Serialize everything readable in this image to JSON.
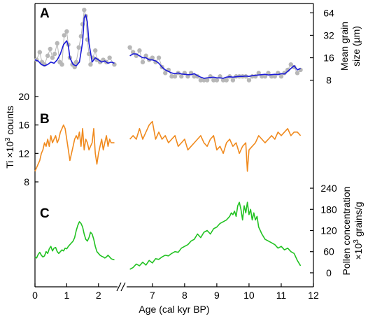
{
  "chart_data": {
    "type": "line",
    "x_axis": {
      "label": "Age (cal kyr BP)",
      "ticks": [
        "0",
        "1",
        "2",
        "7",
        "8",
        "9",
        "10",
        "11",
        "12"
      ],
      "break_symbol": "//",
      "segments": [
        {
          "from": 0,
          "to": 2.6
        },
        {
          "from": 6.2,
          "to": 12
        }
      ]
    },
    "panels": [
      {
        "label": "A",
        "ylabel_line1": "Mean grain",
        "ylabel_line2": "size (µm)",
        "y_side": "right",
        "y_scale": "log2",
        "yticks": [
          "8",
          "16",
          "32",
          "64"
        ],
        "ylim": [
          6,
          80
        ],
        "series": [
          {
            "style": "points",
            "color": "#b7b7b7",
            "x": [
              0.05,
              0.15,
              0.22,
              0.3,
              0.4,
              0.48,
              0.55,
              0.62,
              0.7,
              0.78,
              0.85,
              0.92,
              1.0,
              1.05,
              1.1,
              1.18,
              1.25,
              1.3,
              1.38,
              1.45,
              1.5,
              1.55,
              1.6,
              1.65,
              1.7,
              1.75,
              1.82,
              1.9,
              1.95,
              2.05,
              2.15,
              2.25,
              2.35,
              2.5,
              6.3,
              6.4,
              6.5,
              6.6,
              6.7,
              6.8,
              6.9,
              7.0,
              7.1,
              7.2,
              7.3,
              7.4,
              7.5,
              7.6,
              7.7,
              7.8,
              7.9,
              8.0,
              8.1,
              8.2,
              8.3,
              8.4,
              8.5,
              8.6,
              8.7,
              8.8,
              8.9,
              9.0,
              9.1,
              9.2,
              9.3,
              9.4,
              9.5,
              9.6,
              9.7,
              9.8,
              9.9,
              10.0,
              10.1,
              10.2,
              10.3,
              10.4,
              10.5,
              10.6,
              10.7,
              10.8,
              10.9,
              11.0,
              11.1,
              11.2,
              11.3,
              11.4,
              11.5,
              11.6
            ],
            "values": [
              15,
              19,
              14,
              13,
              17,
              21,
              16,
              18,
              25,
              14,
              13,
              32,
              36,
              24,
              16,
              13,
              12,
              14,
              22,
              31,
              45,
              70,
              58,
              28,
              18,
              13,
              16,
              20,
              15,
              14,
              15,
              14,
              16,
              13,
              22,
              19,
              17,
              20,
              14,
              17,
              15,
              16,
              14,
              16,
              12,
              10,
              11,
              9,
              9,
              10,
              9,
              10,
              9,
              10,
              9,
              9,
              8,
              8,
              8,
              9,
              8,
              8,
              9,
              8,
              8,
              9,
              8,
              9,
              9,
              9,
              9,
              8,
              9,
              9,
              10,
              9,
              9,
              10,
              9,
              9,
              10,
              9,
              10,
              11,
              13,
              12,
              10,
              11
            ]
          },
          {
            "style": "line",
            "color": "#1a1ad6",
            "x": [
              0.0,
              0.1,
              0.2,
              0.3,
              0.4,
              0.5,
              0.6,
              0.7,
              0.8,
              0.9,
              1.0,
              1.05,
              1.1,
              1.2,
              1.3,
              1.4,
              1.5,
              1.55,
              1.6,
              1.65,
              1.7,
              1.8,
              1.9,
              2.0,
              2.1,
              2.2,
              2.3,
              2.4,
              2.5,
              6.3,
              6.4,
              6.5,
              6.6,
              6.7,
              6.8,
              6.9,
              7.0,
              7.1,
              7.2,
              7.3,
              7.4,
              7.5,
              7.6,
              7.7,
              7.8,
              7.9,
              8.0,
              8.1,
              8.2,
              8.3,
              8.4,
              8.5,
              8.6,
              8.7,
              8.8,
              8.9,
              9.0,
              9.1,
              9.2,
              9.3,
              9.4,
              9.5,
              9.6,
              9.7,
              9.8,
              9.9,
              10.0,
              10.1,
              10.2,
              10.3,
              10.4,
              10.5,
              10.6,
              10.7,
              10.8,
              10.9,
              11.0,
              11.1,
              11.2,
              11.3,
              11.4,
              11.5,
              11.6
            ],
            "values": [
              15,
              14.5,
              13,
              12.5,
              13,
              14,
              13.5,
              15,
              18,
              24,
              27,
              23,
              16,
              13,
              12.5,
              14,
              26,
              55,
              60,
              48,
              25,
              14,
              16,
              15,
              14,
              14.5,
              13.5,
              14,
              13.5,
              17,
              18,
              18,
              17,
              16,
              16,
              15,
              15,
              14.5,
              13.5,
              12,
              11,
              10.5,
              10,
              9.8,
              10,
              9.7,
              9.6,
              9.5,
              9.5,
              9.8,
              9.2,
              8.8,
              8.5,
              8.6,
              8.7,
              8.8,
              8.6,
              8.6,
              8.5,
              8.8,
              8.9,
              8.8,
              8.9,
              9,
              9,
              9.1,
              9,
              9.2,
              9.3,
              9.4,
              9.5,
              9.6,
              9.4,
              9.5,
              9.6,
              9.5,
              9.8,
              9.7,
              10.5,
              11.5,
              12.5,
              11,
              11.5
            ]
          }
        ]
      },
      {
        "label": "B",
        "ylabel": "Ti ×10",
        "ylabel_sup": "3",
        "ylabel_tail": " counts",
        "y_side": "left",
        "yticks": [
          "8",
          "12",
          "16",
          "20"
        ],
        "ylim": [
          8,
          20
        ],
        "series": [
          {
            "style": "line",
            "color": "#f08a1e",
            "x": [
              0.0,
              0.05,
              0.1,
              0.15,
              0.2,
              0.25,
              0.3,
              0.35,
              0.4,
              0.45,
              0.5,
              0.55,
              0.6,
              0.65,
              0.7,
              0.75,
              0.8,
              0.85,
              0.9,
              0.95,
              1.0,
              1.05,
              1.1,
              1.15,
              1.2,
              1.25,
              1.3,
              1.35,
              1.4,
              1.45,
              1.5,
              1.55,
              1.6,
              1.65,
              1.7,
              1.75,
              1.8,
              1.85,
              1.9,
              1.95,
              2.0,
              2.05,
              2.1,
              2.15,
              2.2,
              2.25,
              2.3,
              2.35,
              2.4,
              2.45,
              2.5,
              6.3,
              6.4,
              6.5,
              6.6,
              6.7,
              6.8,
              6.9,
              7.0,
              7.1,
              7.2,
              7.3,
              7.4,
              7.5,
              7.6,
              7.7,
              7.8,
              7.9,
              8.0,
              8.1,
              8.2,
              8.3,
              8.4,
              8.5,
              8.6,
              8.7,
              8.8,
              8.9,
              9.0,
              9.1,
              9.2,
              9.3,
              9.4,
              9.5,
              9.6,
              9.7,
              9.8,
              9.9,
              9.95,
              10.0,
              10.1,
              10.2,
              10.3,
              10.4,
              10.5,
              10.6,
              10.7,
              10.8,
              10.9,
              11.0,
              11.1,
              11.2,
              11.3,
              11.4,
              11.5,
              11.6
            ],
            "values": [
              9.5,
              10,
              10.5,
              11,
              12,
              12.5,
              13.5,
              13,
              14,
              13,
              14.5,
              13.5,
              14,
              14.5,
              13.5,
              14,
              15,
              15.5,
              16,
              15.5,
              14,
              12.5,
              11,
              12,
              13,
              14,
              14.5,
              14,
              15,
              13,
              15.5,
              12.5,
              14,
              13.5,
              12.5,
              13,
              13.5,
              15.5,
              12,
              10.5,
              12,
              13,
              14,
              12.5,
              13.5,
              14.5,
              13,
              14,
              13.5,
              13.5,
              13.5,
              14,
              14.5,
              14,
              15.5,
              14,
              15,
              16,
              16.5,
              14,
              15,
              14,
              14.5,
              13.5,
              14,
              14.5,
              13,
              13.5,
              14,
              12.5,
              13,
              13.5,
              14,
              14.5,
              13.5,
              13,
              14,
              14.5,
              12.5,
              13,
              12,
              13.5,
              14,
              13,
              13.5,
              12,
              13,
              13.5,
              9.5,
              12.5,
              13,
              13.5,
              14.5,
              14,
              13.5,
              14,
              14.5,
              14,
              15,
              14.5,
              15,
              15.5,
              14.5,
              15,
              15,
              14.5
            ]
          }
        ]
      },
      {
        "label": "C",
        "ylabel_line1": "Pollen concentration",
        "ylabel_pre": "×10",
        "ylabel_sup": "3",
        "ylabel_post": " grains/g",
        "y_side": "right",
        "yticks": [
          "0",
          "60",
          "120",
          "180",
          "240"
        ],
        "ylim": [
          -10,
          250
        ],
        "series": [
          {
            "style": "line",
            "color": "#22c222",
            "x": [
              0.0,
              0.05,
              0.1,
              0.15,
              0.2,
              0.25,
              0.3,
              0.35,
              0.4,
              0.45,
              0.5,
              0.55,
              0.6,
              0.65,
              0.7,
              0.75,
              0.8,
              0.85,
              0.9,
              0.95,
              1.0,
              1.05,
              1.1,
              1.15,
              1.2,
              1.25,
              1.3,
              1.35,
              1.4,
              1.45,
              1.5,
              1.55,
              1.6,
              1.65,
              1.7,
              1.75,
              1.8,
              1.85,
              1.9,
              1.95,
              2.0,
              2.05,
              2.1,
              2.15,
              2.2,
              2.25,
              2.3,
              2.35,
              2.4,
              2.45,
              2.5,
              6.3,
              6.4,
              6.5,
              6.6,
              6.7,
              6.8,
              6.9,
              7.0,
              7.1,
              7.2,
              7.3,
              7.4,
              7.5,
              7.6,
              7.7,
              7.8,
              7.9,
              8.0,
              8.1,
              8.2,
              8.3,
              8.4,
              8.5,
              8.6,
              8.7,
              8.8,
              8.9,
              9.0,
              9.1,
              9.2,
              9.3,
              9.4,
              9.45,
              9.5,
              9.55,
              9.6,
              9.65,
              9.7,
              9.75,
              9.8,
              9.85,
              9.9,
              9.95,
              10.0,
              10.05,
              10.1,
              10.15,
              10.2,
              10.25,
              10.3,
              10.4,
              10.5,
              10.6,
              10.7,
              10.8,
              10.9,
              11.0,
              11.1,
              11.2,
              11.3,
              11.4,
              11.5,
              11.6
            ],
            "values": [
              45,
              42,
              52,
              58,
              50,
              45,
              48,
              60,
              55,
              68,
              75,
              62,
              70,
              72,
              60,
              55,
              60,
              65,
              62,
              70,
              68,
              75,
              80,
              85,
              90,
              100,
              120,
              135,
              145,
              140,
              130,
              110,
              95,
              90,
              100,
              115,
              110,
              95,
              75,
              60,
              55,
              50,
              47,
              45,
              42,
              45,
              50,
              45,
              40,
              38,
              37,
              10,
              15,
              25,
              20,
              30,
              22,
              35,
              28,
              40,
              38,
              45,
              50,
              48,
              55,
              60,
              58,
              70,
              75,
              80,
              90,
              95,
              110,
              100,
              115,
              120,
              110,
              125,
              130,
              140,
              145,
              150,
              160,
              170,
              165,
              175,
              160,
              190,
              200,
              180,
              150,
              190,
              170,
              200,
              165,
              180,
              150,
              170,
              150,
              160,
              130,
              110,
              95,
              90,
              85,
              80,
              70,
              75,
              65,
              70,
              60,
              55,
              35,
              20
            ]
          }
        ]
      }
    ]
  }
}
